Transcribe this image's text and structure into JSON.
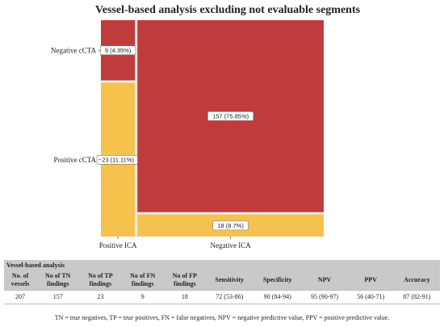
{
  "chart_data": {
    "type": "mosaic",
    "title": "Vessel-based analysis excluding not evaluable segments",
    "x_categories": [
      "Positive ICA",
      "Negative ICA"
    ],
    "y_categories": [
      "Negative cCTA",
      "Positive cCTA"
    ],
    "cells": [
      {
        "x": "Positive ICA",
        "y": "Negative cCTA",
        "count": 9,
        "label": "9 (4.35%)",
        "color": "#c03c3c"
      },
      {
        "x": "Positive ICA",
        "y": "Positive cCTA",
        "count": 23,
        "label": "23 (11.11%)",
        "color": "#f5c24d"
      },
      {
        "x": "Negative ICA",
        "y": "Negative cCTA",
        "count": 157,
        "label": "157 (75.85%)",
        "color": "#c03c3c"
      },
      {
        "x": "Negative ICA",
        "y": "Positive cCTA",
        "count": 18,
        "label": "18 (8.7%)",
        "color": "#f5c24d"
      }
    ],
    "total": 207,
    "grid": true,
    "background": "#ebebeb"
  },
  "table": {
    "caption": "Vessel-based analysis",
    "headers": [
      [
        "No. of",
        "vessels"
      ],
      [
        "No of TN",
        "findings"
      ],
      [
        "No of TP",
        "findings"
      ],
      [
        "No of FN",
        "findings"
      ],
      [
        "No of FP",
        "findings"
      ],
      [
        "Sensitivity"
      ],
      [
        "Specificity"
      ],
      [
        "NPV"
      ],
      [
        "PPV"
      ],
      [
        "Accuracy"
      ]
    ],
    "row": [
      "207",
      "157",
      "23",
      "9",
      "18",
      "72 (53-86)",
      "90 (84-94)",
      "95 (90-97)",
      "56 (40-71)",
      "87 (82-91)"
    ]
  },
  "footnote": "TN = true negatives, TP = true positives, FN = false negatives, NPV = negative predictive value, PPV = positive predictive value."
}
